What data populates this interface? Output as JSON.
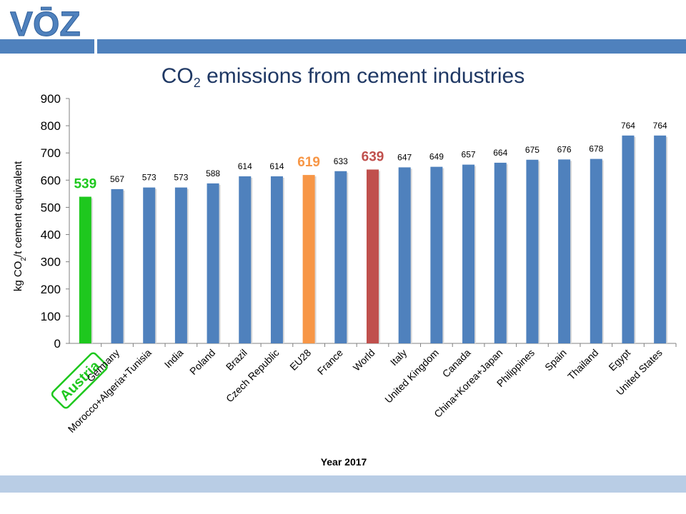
{
  "logo": {
    "text": "VŌZ"
  },
  "title": {
    "main": "CO",
    "sub": "2",
    "rest": " emissions from cement industries"
  },
  "chart_data": {
    "type": "bar",
    "categories": [
      "Austria",
      "Germany",
      "Morocco+Algeria+Tunisia",
      "India",
      "Poland",
      "Brazil",
      "Czech Republic",
      "EU28",
      "France",
      "World",
      "Italy",
      "United Kingdom",
      "Canada",
      "China+Korea+Japan",
      "Philippines",
      "Spain",
      "Thailand",
      "Egypt",
      "United States"
    ],
    "values": [
      539,
      567,
      573,
      573,
      588,
      614,
      614,
      619,
      633,
      639,
      647,
      649,
      657,
      664,
      675,
      676,
      678,
      764,
      764
    ],
    "value_labels": [
      "539",
      "567",
      "573",
      "573",
      "588",
      "614",
      "614",
      "619",
      "633",
      "639",
      "647",
      "649",
      "657",
      "664",
      "675",
      "676",
      "678",
      "764",
      "764"
    ],
    "colors": [
      "#1ec81e",
      "#4f81bd",
      "#4f81bd",
      "#4f81bd",
      "#4f81bd",
      "#4f81bd",
      "#4f81bd",
      "#f79646",
      "#4f81bd",
      "#c0504d",
      "#4f81bd",
      "#4f81bd",
      "#4f81bd",
      "#4f81bd",
      "#4f81bd",
      "#4f81bd",
      "#4f81bd",
      "#4f81bd",
      "#4f81bd"
    ],
    "highlight": {
      "Austria": "#1ec81e",
      "EU28": "#f79646",
      "World": "#c0504d"
    },
    "ylim": [
      0,
      900
    ],
    "yticks": [
      0,
      100,
      200,
      300,
      400,
      500,
      600,
      700,
      800,
      900
    ],
    "ylabel_parts": [
      "kg CO",
      "2",
      "/t cement equivalent"
    ],
    "xlabel": "Year 2017",
    "grid": false,
    "legend": "none"
  }
}
